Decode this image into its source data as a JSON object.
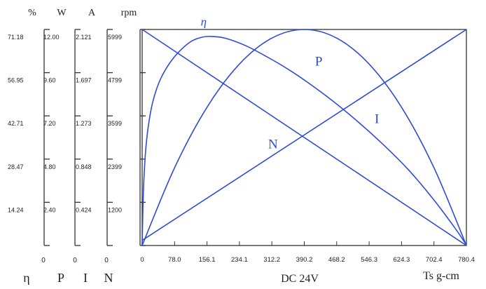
{
  "chart_data": {
    "type": "line",
    "x_unit_label": "Ts  g-cm",
    "voltage_label": "DC 24V",
    "x_ticks": [
      "0",
      "78.0",
      "156.1",
      "234.1",
      "312.2",
      "390.2",
      "468.2",
      "546.3",
      "624.3",
      "702.4",
      "780.4"
    ],
    "x_range": [
      0,
      780.4
    ],
    "axes": [
      {
        "key": "eff",
        "unit": "%",
        "bottom_label": "η",
        "zero": "0",
        "ticks": [
          "71.18",
          "56.95",
          "42.71",
          "28.47",
          "14.24"
        ],
        "max": 71.18
      },
      {
        "key": "power",
        "unit": "W",
        "bottom_label": "P",
        "zero": "0",
        "ticks": [
          "12.00",
          "9.60",
          "7.20",
          "4.80",
          "2.40"
        ],
        "max": 12.0
      },
      {
        "key": "current",
        "unit": "A",
        "bottom_label": "I",
        "zero": "0",
        "ticks": [
          "2.121",
          "1.697",
          "1.273",
          "0.848",
          "0.424"
        ],
        "max": 2.121
      },
      {
        "key": "speed",
        "unit": "rpm",
        "bottom_label": "N",
        "zero": "",
        "ticks": [
          "5999",
          "4799",
          "3599",
          "2399",
          "1200"
        ],
        "max": 5999
      }
    ],
    "series": [
      {
        "name": "η",
        "axis": "eff",
        "x": [
          0,
          3,
          8,
          15,
          25,
          40,
          60,
          85,
          115,
          140,
          165,
          200,
          250,
          300,
          350,
          400,
          460,
          520,
          580,
          640,
          700,
          750,
          775,
          780.4
        ],
        "y": [
          0,
          18,
          30.5,
          39.5,
          47,
          53.5,
          58.8,
          63.3,
          67,
          68.5,
          68.9,
          68.3,
          65.8,
          62.2,
          58.2,
          53.6,
          47.5,
          40.7,
          33.3,
          25.1,
          15.4,
          6.3,
          1.3,
          0
        ]
      },
      {
        "name": "P",
        "axis": "power",
        "x": [
          0,
          78,
          156.1,
          234.1,
          312.2,
          390.2,
          468.2,
          546.3,
          624.3,
          702.4,
          780.4
        ],
        "y": [
          0,
          4.32,
          7.68,
          10.08,
          11.52,
          12.0,
          11.52,
          10.08,
          7.68,
          4.32,
          0
        ]
      },
      {
        "name": "N",
        "axis": "speed",
        "x": [
          0,
          780.4
        ],
        "y": [
          5999,
          0
        ]
      },
      {
        "name": "I",
        "axis": "current",
        "x": [
          0,
          780.4
        ],
        "y": [
          0.05,
          2.121
        ]
      }
    ],
    "curve_label_positions": [
      {
        "name": "η",
        "x": 148,
        "axis": "eff",
        "y": 72.5
      },
      {
        "name": "P",
        "x": 425,
        "axis": "power",
        "y": 10.0
      },
      {
        "name": "N",
        "x": 315,
        "axis": "speed",
        "y": 2700
      },
      {
        "name": "I",
        "x": 565,
        "axis": "current",
        "y": 1.2
      }
    ],
    "colors": {
      "curve": "#2f4bd6",
      "axis": "#333333",
      "text": "#222222"
    },
    "grid": false
  }
}
